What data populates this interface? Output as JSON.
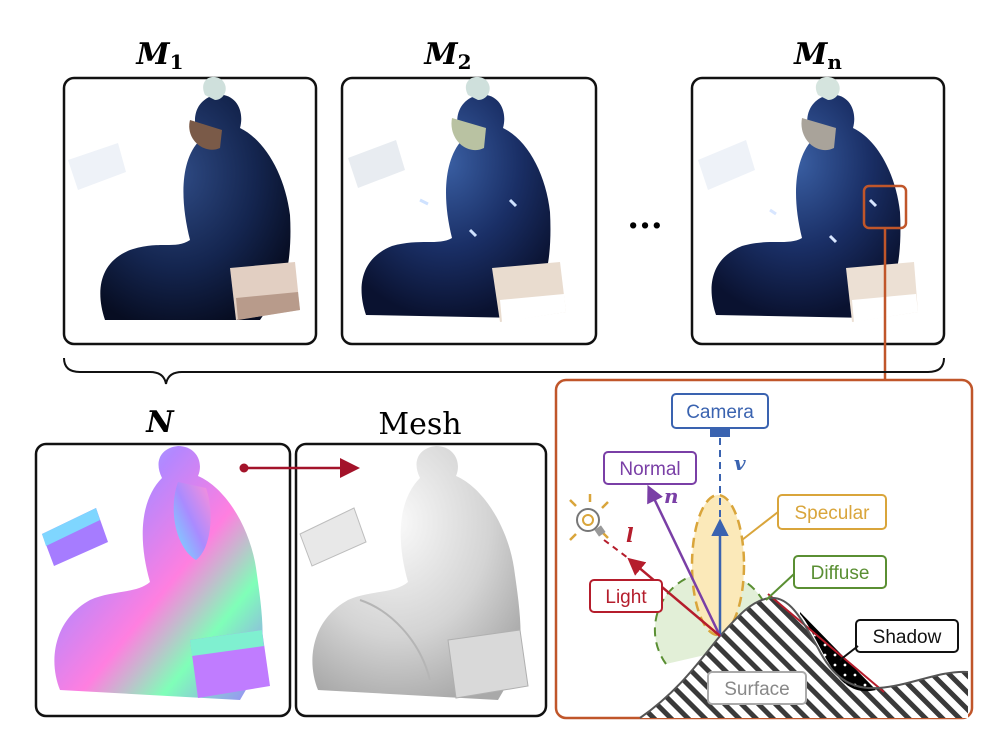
{
  "images": {
    "top": [
      {
        "label_main": "M",
        "label_sub": "1"
      },
      {
        "label_main": "M",
        "label_sub": "2"
      },
      {
        "label_main": "M",
        "label_sub": "n"
      }
    ],
    "ellipsis": "...",
    "normal_label": "N",
    "mesh_label": "Mesh"
  },
  "reflectance": {
    "camera": "Camera",
    "normal": "Normal",
    "specular": "Specular",
    "diffuse": "Diffuse",
    "light": "Light",
    "shadow": "Shadow",
    "surface": "Surface",
    "vec_v": "v",
    "vec_n": "n",
    "vec_l": "l"
  },
  "colors": {
    "frame_black": "#111111",
    "frame_orange": "#c0562a",
    "camera": "#3a63b0",
    "normal": "#7a3fa6",
    "specular": "#d9a53b",
    "diffuse": "#5a8f33",
    "light": "#b51d2c",
    "arrow_red": "#a3132a"
  }
}
